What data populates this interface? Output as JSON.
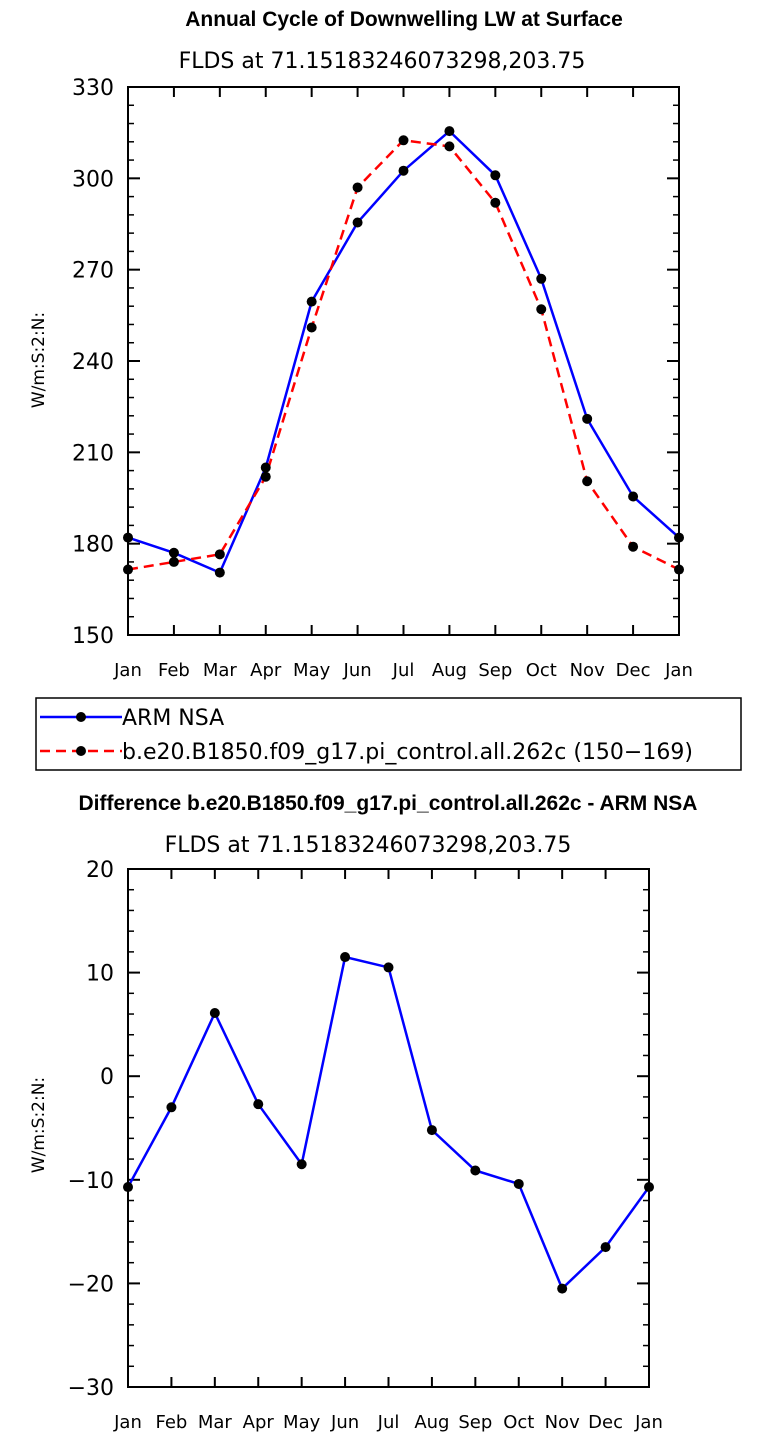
{
  "colors": {
    "blue": "#0000ff",
    "red": "#ff0000",
    "black": "#000000"
  },
  "chart_data": [
    {
      "type": "line",
      "title": "Annual Cycle of Downwelling LW at Surface",
      "subtitle": "FLDS at 71.15183246073298,203.75",
      "ylabel": "W/m:S:2:N:",
      "categories": [
        "Jan",
        "Feb",
        "Mar",
        "Apr",
        "May",
        "Jun",
        "Jul",
        "Aug",
        "Sep",
        "Oct",
        "Nov",
        "Dec",
        "Jan"
      ],
      "ylim": [
        150,
        330
      ],
      "yticks": [
        150,
        180,
        210,
        240,
        270,
        300,
        330
      ],
      "grid": false,
      "series": [
        {
          "name": "ARM NSA",
          "color": "#0000ff",
          "dash": "solid",
          "values": [
            182,
            177,
            170.5,
            205,
            259.5,
            285.5,
            302.5,
            315.5,
            301,
            267,
            221,
            195.5,
            182
          ]
        },
        {
          "name": "b.e20.B1850.f09_g17.pi_control.all.262c (150−169)",
          "color": "#ff0000",
          "dash": "dashed",
          "values": [
            171.5,
            174,
            176.5,
            202,
            251,
            297,
            312.5,
            310.5,
            292,
            257,
            200.5,
            179,
            171.5
          ]
        }
      ],
      "legend": [
        "ARM NSA",
        "b.e20.B1850.f09_g17.pi_control.all.262c (150−169)"
      ]
    },
    {
      "type": "line",
      "title": "Difference b.e20.B1850.f09_g17.pi_control.all.262c - ARM NSA",
      "subtitle": "FLDS at 71.15183246073298,203.75",
      "ylabel": "W/m:S:2:N:",
      "categories": [
        "Jan",
        "Feb",
        "Mar",
        "Apr",
        "May",
        "Jun",
        "Jul",
        "Aug",
        "Sep",
        "Oct",
        "Nov",
        "Dec",
        "Jan"
      ],
      "ylim": [
        -30,
        20
      ],
      "yticks": [
        -30,
        -20,
        -10,
        0,
        10,
        20
      ],
      "yticklabels": [
        "−30",
        "−20",
        "−10",
        "0",
        "10",
        "20"
      ],
      "grid": false,
      "series": [
        {
          "name": "Difference",
          "color": "#0000ff",
          "dash": "solid",
          "values": [
            -10.7,
            -3,
            6.1,
            -2.7,
            -8.5,
            11.5,
            10.5,
            -5.2,
            -9.1,
            -10.4,
            -20.5,
            -16.5,
            -10.7
          ]
        }
      ]
    }
  ]
}
